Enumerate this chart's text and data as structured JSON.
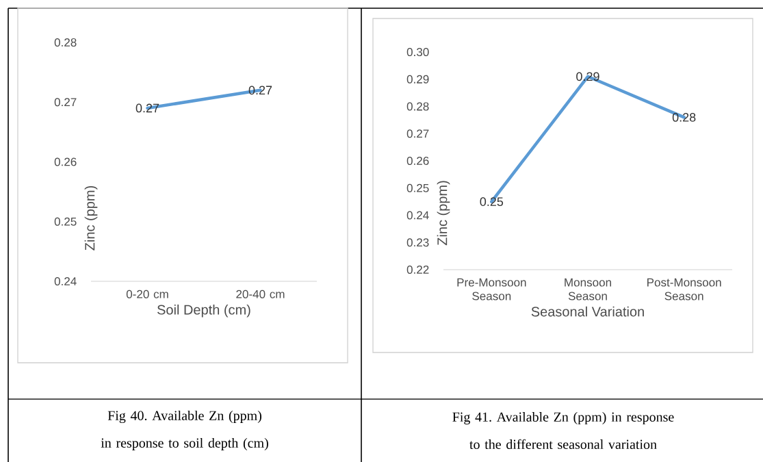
{
  "chart_data": [
    {
      "type": "line",
      "xlabel": "Soil Depth (cm)",
      "ylabel": "Zinc (ppm)",
      "categories": [
        "0-20 cm",
        "20-40 cm"
      ],
      "series": [
        {
          "color": "#5b9bd5",
          "values": [
            0.269,
            0.272
          ],
          "value_labels": [
            "0.27",
            "0.27"
          ]
        }
      ],
      "ylim": [
        0.24,
        0.28
      ],
      "yticks": [
        {
          "value": 0.24,
          "label": "0.24"
        },
        {
          "value": 0.25,
          "label": "0.25"
        },
        {
          "value": 0.26,
          "label": "0.26"
        },
        {
          "value": 0.27,
          "label": "0.27"
        },
        {
          "value": 0.28,
          "label": "0.28"
        }
      ],
      "annotations": [
        "Fig 40. Available Zn (ppm) in response to soil depth (cm)"
      ]
    },
    {
      "type": "line",
      "xlabel": "Seasonal Variation",
      "ylabel": "Zinc (ppm)",
      "categories": [
        "Pre-Monsoon Season",
        "Monsoon Season",
        "Post-Monsoon Season"
      ],
      "series": [
        {
          "color": "#5b9bd5",
          "values": [
            0.245,
            0.291,
            0.276
          ],
          "value_labels": [
            "0.25",
            "0.29",
            "0.28"
          ]
        }
      ],
      "ylim": [
        0.22,
        0.3
      ],
      "yticks": [
        {
          "value": 0.22,
          "label": "0.22"
        },
        {
          "value": 0.23,
          "label": "0.23"
        },
        {
          "value": 0.24,
          "label": "0.24"
        },
        {
          "value": 0.25,
          "label": "0.25"
        },
        {
          "value": 0.26,
          "label": "0.26"
        },
        {
          "value": 0.27,
          "label": "0.27"
        },
        {
          "value": 0.28,
          "label": "0.28"
        },
        {
          "value": 0.29,
          "label": "0.29"
        },
        {
          "value": 0.3,
          "label": "0.30"
        }
      ],
      "annotations": [
        "Fig 41. Available Zn (ppm) in response to the different seasonal variation"
      ]
    }
  ]
}
